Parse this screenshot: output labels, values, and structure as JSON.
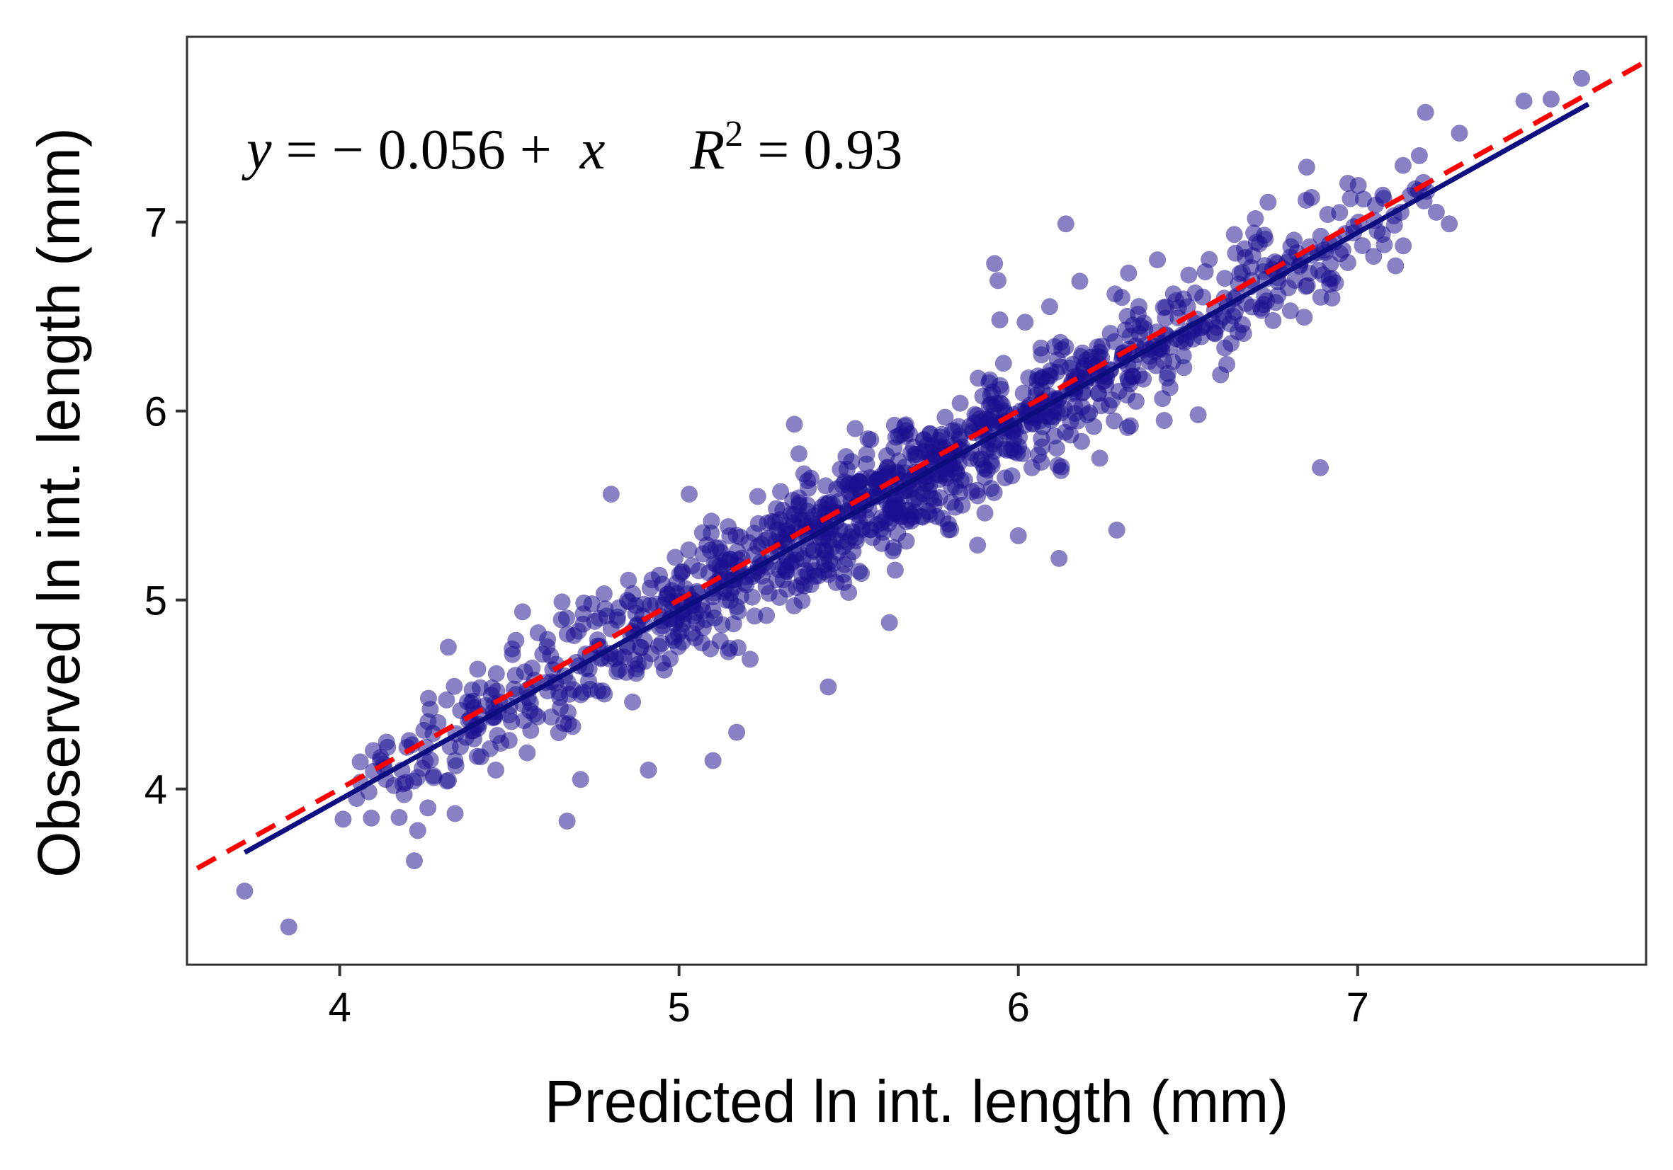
{
  "chart_data": {
    "type": "scatter",
    "xlabel": "Predicted ln int. length (mm)",
    "ylabel": "Observed ln int. length (mm)",
    "xlim": [
      3.55,
      7.85
    ],
    "ylim": [
      3.07,
      7.98
    ],
    "xticks": [
      "4",
      "5",
      "6",
      "7"
    ],
    "yticks": [
      "4",
      "5",
      "6",
      "7"
    ],
    "annotation": {
      "y_var": "y",
      "eq_mid": " = − 0.056 + ",
      "x_var": "x",
      "r_var": "R",
      "r_exp": "2",
      "r_value": " = 0.93"
    },
    "fit_line": {
      "intercept": -0.056,
      "slope": 1.0,
      "x_range": [
        3.72,
        7.68
      ],
      "color": "#0d0d80"
    },
    "identity_line": {
      "intercept": 0.0,
      "slope": 1.0,
      "x_range": [
        3.58,
        7.85
      ],
      "color": "#ff0000",
      "style": "dashed"
    },
    "point_color": "#1a0f8f",
    "point_opacity": 0.52,
    "grid": false,
    "outliers": [
      [
        3.72,
        3.46
      ],
      [
        3.85,
        3.27
      ],
      [
        4.22,
        3.62
      ],
      [
        4.23,
        3.78
      ],
      [
        4.34,
        3.87
      ],
      [
        4.01,
        3.84
      ],
      [
        4.05,
        3.95
      ],
      [
        4.19,
        3.97
      ],
      [
        4.26,
        3.9
      ],
      [
        4.46,
        4.1
      ],
      [
        4.67,
        3.83
      ],
      [
        4.71,
        4.05
      ],
      [
        4.91,
        4.1
      ],
      [
        5.1,
        4.15
      ],
      [
        5.17,
        4.3
      ],
      [
        5.44,
        4.54
      ],
      [
        5.62,
        4.88
      ],
      [
        4.8,
        5.56
      ],
      [
        4.32,
        4.75
      ],
      [
        4.34,
        4.15
      ],
      [
        5.93,
        6.78
      ],
      [
        5.94,
        6.69
      ],
      [
        6.14,
        6.99
      ],
      [
        6.89,
        5.7
      ],
      [
        5.88,
        5.29
      ],
      [
        6.0,
        5.34
      ],
      [
        6.12,
        5.22
      ],
      [
        6.29,
        5.37
      ],
      [
        6.53,
        5.98
      ],
      [
        7.27,
        6.99
      ],
      [
        7.2,
        7.58
      ],
      [
        7.3,
        7.47
      ],
      [
        7.49,
        7.64
      ],
      [
        7.57,
        7.65
      ],
      [
        7.66,
        7.76
      ],
      [
        6.02,
        6.47
      ],
      [
        5.5,
        5.04
      ],
      [
        5.92,
        5.59
      ],
      [
        6.24,
        5.75
      ],
      [
        5.34,
        5.93
      ],
      [
        6.21,
        5.99
      ],
      [
        5.03,
        5.56
      ],
      [
        4.12,
        4.15
      ],
      [
        4.65,
        4.43
      ],
      [
        6.43,
        5.95
      ],
      [
        6.85,
        7.29
      ],
      [
        6.41,
        6.8
      ],
      [
        6.04,
        5.7
      ]
    ],
    "cluster": {
      "count": 1150,
      "x_min": 4.05,
      "x_max": 7.25,
      "residual_sd": 0.16,
      "seed": 20240521
    }
  }
}
